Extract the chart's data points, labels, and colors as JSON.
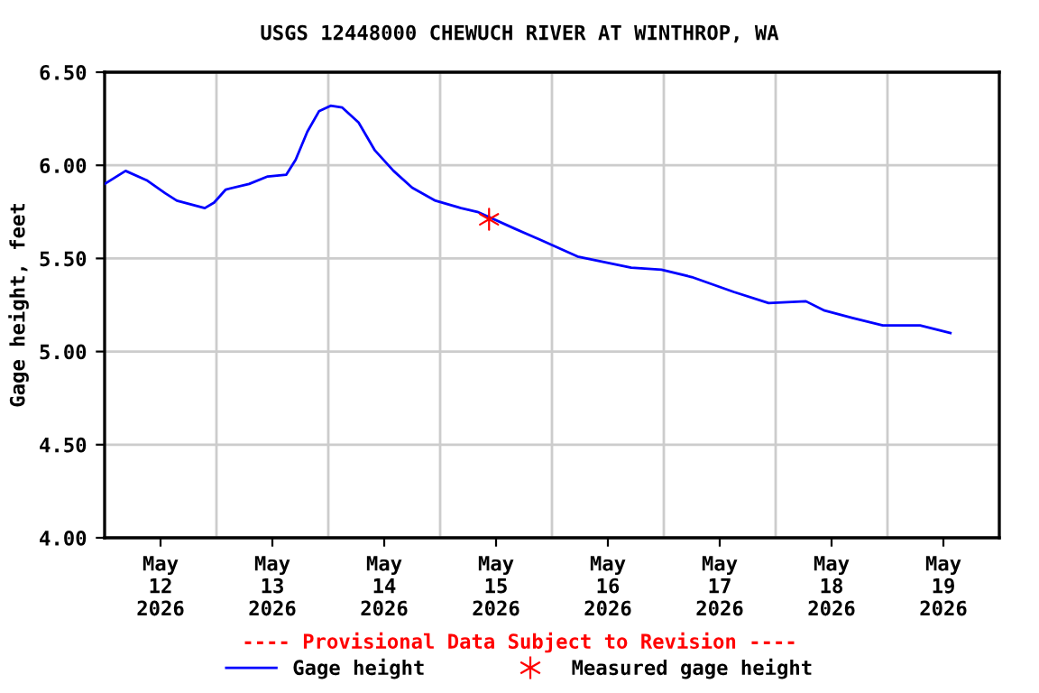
{
  "chart_data": {
    "type": "line",
    "title": "USGS 12448000 CHEWUCH RIVER AT WINTHROP, WA",
    "ylabel": "Gage height, feet",
    "annotations": [
      "---- Provisional Data Subject to Revision ----"
    ],
    "series": [
      {
        "name": "Gage height",
        "color": "#0000ff",
        "x": [
          "2026-05-11T12:00",
          "2026-05-11T16:30",
          "2026-05-11T21:00",
          "2026-05-12T01:00",
          "2026-05-12T03:30",
          "2026-05-12T09:30",
          "2026-05-12T11:30",
          "2026-05-12T14:00",
          "2026-05-12T19:00",
          "2026-05-12T23:00",
          "2026-05-13T03:00",
          "2026-05-13T05:00",
          "2026-05-13T07:30",
          "2026-05-13T10:00",
          "2026-05-13T12:30",
          "2026-05-13T15:00",
          "2026-05-13T18:30",
          "2026-05-13T22:00",
          "2026-05-14T02:00",
          "2026-05-14T06:00",
          "2026-05-14T11:00",
          "2026-05-14T16:30",
          "2026-05-14T20:00",
          "2026-05-15T04:00",
          "2026-05-15T09:30",
          "2026-05-15T17:30",
          "2026-05-16T05:00",
          "2026-05-16T11:30",
          "2026-05-16T18:00",
          "2026-05-17T03:00",
          "2026-05-17T10:30",
          "2026-05-17T18:30",
          "2026-05-17T22:30",
          "2026-05-18T04:30",
          "2026-05-18T11:00",
          "2026-05-18T19:00",
          "2026-05-19T01:30"
        ],
        "values": [
          5.9,
          5.97,
          5.92,
          5.85,
          5.81,
          5.77,
          5.8,
          5.87,
          5.9,
          5.94,
          5.95,
          6.03,
          6.18,
          6.29,
          6.32,
          6.31,
          6.23,
          6.08,
          5.97,
          5.88,
          5.81,
          5.77,
          5.75,
          5.66,
          5.6,
          5.51,
          5.45,
          5.44,
          5.4,
          5.32,
          5.26,
          5.27,
          5.22,
          5.18,
          5.14,
          5.14,
          5.1
        ]
      },
      {
        "name": "Measured gage height",
        "color": "#ff0000",
        "type": "scatter",
        "marker": "cross",
        "x": [
          "2026-05-14T22:30"
        ],
        "values": [
          5.71
        ]
      }
    ],
    "xlim": [
      "2026-05-11T12:00",
      "2026-05-19T12:00"
    ],
    "xticks": [
      {
        "value": "2026-05-12T00:00",
        "label": "May\n12\n2026"
      },
      {
        "value": "2026-05-12T12:00",
        "label": null
      },
      {
        "value": "2026-05-13T00:00",
        "label": "May\n13\n2026"
      },
      {
        "value": "2026-05-13T12:00",
        "label": null
      },
      {
        "value": "2026-05-14T00:00",
        "label": "May\n14\n2026"
      },
      {
        "value": "2026-05-14T12:00",
        "label": null
      },
      {
        "value": "2026-05-15T00:00",
        "label": "May\n15\n2026"
      },
      {
        "value": "2026-05-15T12:00",
        "label": null
      },
      {
        "value": "2026-05-16T00:00",
        "label": "May\n16\n2026"
      },
      {
        "value": "2026-05-16T12:00",
        "label": null
      },
      {
        "value": "2026-05-17T00:00",
        "label": "May\n17\n2026"
      },
      {
        "value": "2026-05-17T12:00",
        "label": null
      },
      {
        "value": "2026-05-18T00:00",
        "label": "May\n18\n2026"
      },
      {
        "value": "2026-05-18T12:00",
        "label": null
      },
      {
        "value": "2026-05-19T00:00",
        "label": "May\n19\n2026"
      }
    ],
    "ylim": [
      4.0,
      6.5
    ],
    "yticks": [
      {
        "value": 4.0,
        "label": "4.00"
      },
      {
        "value": 4.5,
        "label": "4.50"
      },
      {
        "value": 5.0,
        "label": "5.00"
      },
      {
        "value": 5.5,
        "label": "5.50"
      },
      {
        "value": 6.0,
        "label": "6.00"
      },
      {
        "value": 6.5,
        "label": "6.50"
      }
    ],
    "grid": true,
    "legend": "bottom"
  }
}
